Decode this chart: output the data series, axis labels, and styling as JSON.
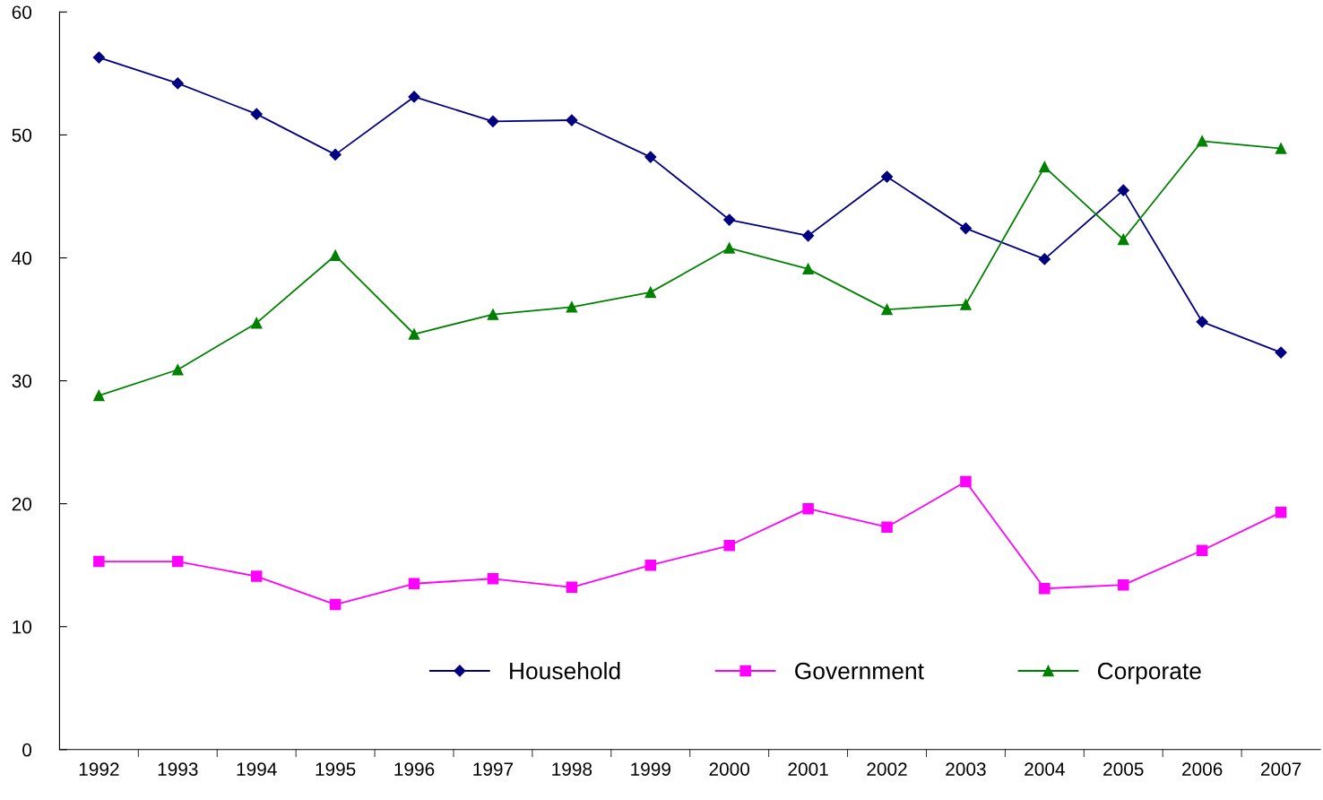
{
  "chart_data": {
    "type": "line",
    "categories": [
      "1992",
      "1993",
      "1994",
      "1995",
      "1996",
      "1997",
      "1998",
      "1999",
      "2000",
      "2001",
      "2002",
      "2003",
      "2004",
      "2005",
      "2006",
      "2007"
    ],
    "series": [
      {
        "name": "Household",
        "color": "#000080",
        "marker": "diamond",
        "values": [
          56.3,
          54.2,
          51.7,
          48.4,
          53.1,
          51.1,
          51.2,
          48.2,
          43.1,
          41.8,
          46.6,
          42.4,
          39.9,
          45.5,
          34.8,
          32.3
        ]
      },
      {
        "name": "Government",
        "color": "#ff00ff",
        "marker": "square",
        "values": [
          15.3,
          15.3,
          14.1,
          11.8,
          13.5,
          13.9,
          13.2,
          15.0,
          16.6,
          19.6,
          18.1,
          21.8,
          13.1,
          13.4,
          16.2,
          19.3
        ]
      },
      {
        "name": "Corporate",
        "color": "#008000",
        "marker": "triangle",
        "values": [
          28.8,
          30.9,
          34.7,
          40.2,
          33.8,
          35.4,
          36.0,
          37.2,
          40.8,
          39.1,
          35.8,
          36.2,
          47.4,
          41.5,
          49.5,
          48.9
        ]
      }
    ],
    "ylim": [
      0,
      60
    ],
    "yticks": [
      0,
      10,
      20,
      30,
      40,
      50,
      60
    ],
    "grid": false,
    "legend": "bottom",
    "line_style": "solid"
  }
}
